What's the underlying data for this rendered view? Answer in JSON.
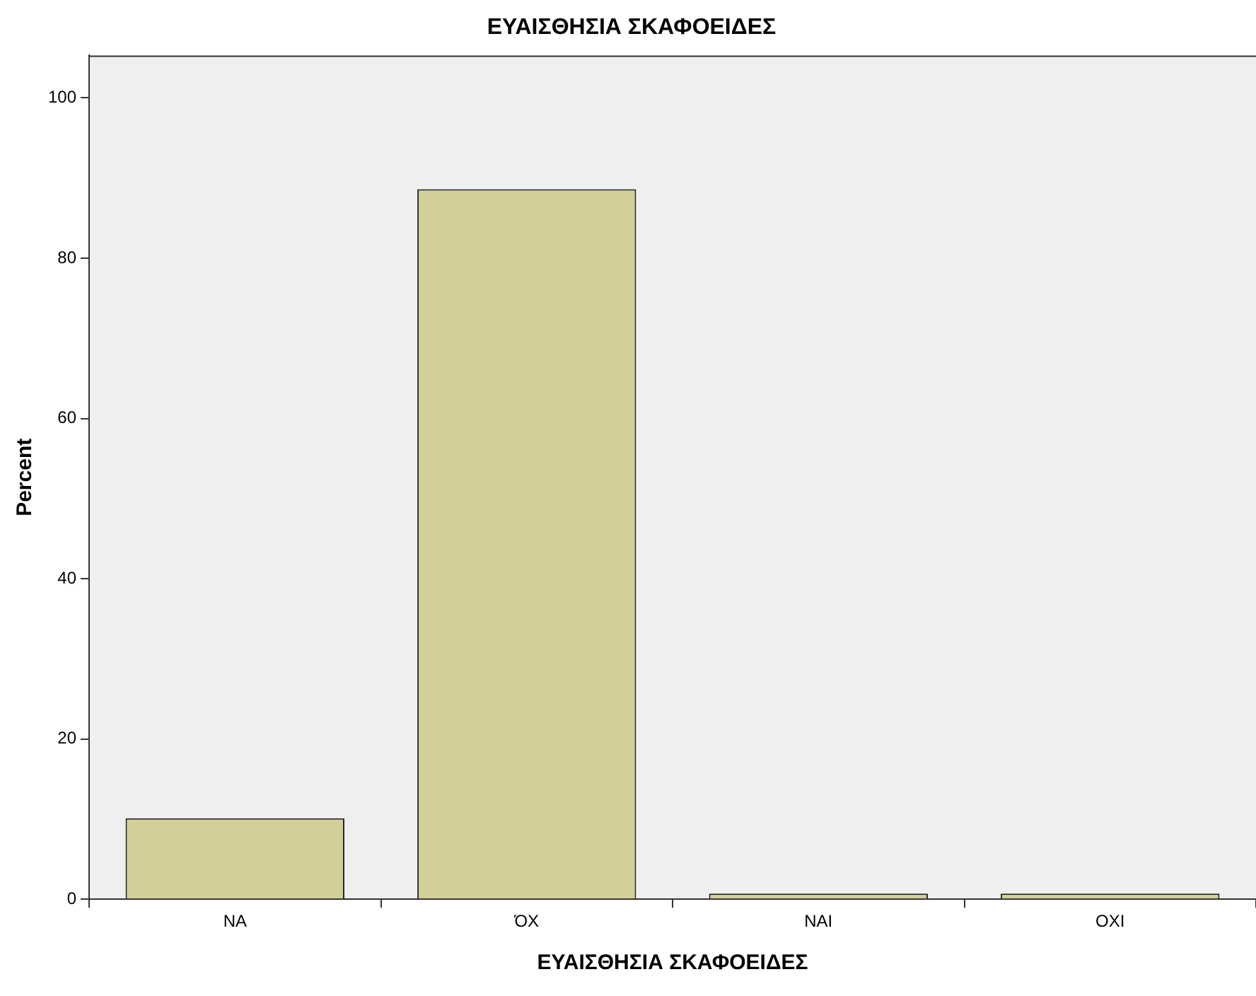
{
  "chart_data": {
    "type": "bar",
    "title": "ΕΥΑΙΣΘΗΣΙΑ ΣΚΑΦΟΕΙΔΕΣ",
    "xlabel": "ΕΥΑΙΣΘΗΣΙΑ ΣΚΑΦΟΕΙΔΕΣ",
    "ylabel": "Percent",
    "categories": [
      "ΝΑ",
      "ΌΧ",
      "ΝΑΙ",
      "ΟΧΙ"
    ],
    "values": [
      10.1,
      88.6,
      0.7,
      0.7
    ],
    "color": "#d3cf98",
    "ylim": [
      0,
      105.3
    ],
    "yticks": [
      0,
      20,
      40,
      60,
      80,
      100
    ],
    "grid": false,
    "legend": false
  }
}
